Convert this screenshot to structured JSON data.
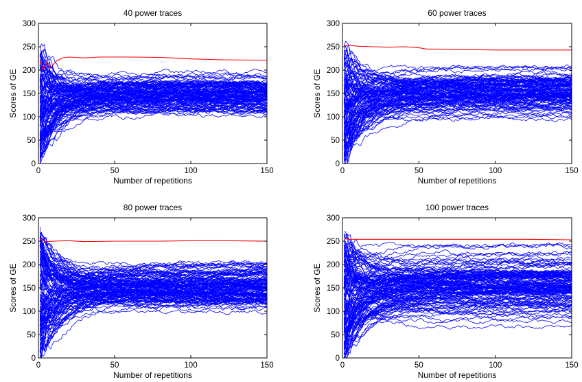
{
  "colors": {
    "candidate": "#0000ff",
    "correct": "#ff0000",
    "axes": "#000000"
  },
  "chart_data": [
    {
      "type": "line",
      "title": "40 power traces",
      "xlabel": "Number of repetitions",
      "ylabel": "Scores of GE",
      "xlim": [
        0,
        150
      ],
      "ylim": [
        0,
        300
      ],
      "xticks": [
        0,
        50,
        100,
        150
      ],
      "yticks": [
        0,
        50,
        100,
        150,
        200,
        250,
        300
      ],
      "series": [
        {
          "color": "#ff0000",
          "x": [
            1,
            3,
            5,
            8,
            12,
            16,
            20,
            30,
            40,
            60,
            80,
            100,
            120,
            150
          ],
          "y": [
            220,
            200,
            215,
            205,
            220,
            226,
            228,
            226,
            228,
            228,
            227,
            224,
            222,
            221
          ]
        },
        {
          "color": "#0000ff",
          "bundle": true,
          "count": 120,
          "x_range": [
            1,
            150
          ],
          "start_range": [
            0,
            258
          ],
          "settled_range": [
            100,
            200
          ],
          "settle_reps": 25
        }
      ]
    },
    {
      "type": "line",
      "title": "60 power traces",
      "xlabel": "Number of repetitions",
      "ylabel": "Scores of GE",
      "xlim": [
        0,
        150
      ],
      "ylim": [
        0,
        300
      ],
      "xticks": [
        0,
        50,
        100,
        150
      ],
      "yticks": [
        0,
        50,
        100,
        150,
        200,
        250,
        300
      ],
      "series": [
        {
          "color": "#ff0000",
          "x": [
            1,
            5,
            10,
            20,
            30,
            40,
            50,
            55,
            60,
            80,
            100,
            120,
            150
          ],
          "y": [
            252,
            253,
            251,
            250,
            249,
            250,
            248,
            245,
            245,
            244,
            243,
            243,
            243
          ]
        },
        {
          "color": "#0000ff",
          "bundle": true,
          "count": 120,
          "x_range": [
            1,
            150
          ],
          "start_range": [
            0,
            258
          ],
          "settled_range": [
            95,
            212
          ],
          "settle_reps": 30
        }
      ]
    },
    {
      "type": "line",
      "title": "80 power traces",
      "xlabel": "Number of repetitions",
      "ylabel": "Scores of GE",
      "xlim": [
        0,
        150
      ],
      "ylim": [
        0,
        300
      ],
      "xticks": [
        0,
        50,
        100,
        150
      ],
      "yticks": [
        0,
        50,
        100,
        150,
        200,
        250,
        300
      ],
      "series": [
        {
          "color": "#ff0000",
          "x": [
            1,
            5,
            10,
            20,
            30,
            50,
            80,
            100,
            120,
            150
          ],
          "y": [
            255,
            249,
            250,
            251,
            249,
            250,
            250,
            251,
            251,
            250
          ]
        },
        {
          "color": "#0000ff",
          "bundle": true,
          "count": 130,
          "x_range": [
            1,
            150
          ],
          "start_range": [
            2,
            258
          ],
          "settled_range": [
            95,
            212
          ],
          "settle_reps": 35
        }
      ]
    },
    {
      "type": "line",
      "title": "100 power traces",
      "xlabel": "Number of repetitions",
      "ylabel": "Scores of GE",
      "xlim": [
        0,
        150
      ],
      "ylim": [
        0,
        300
      ],
      "xticks": [
        0,
        50,
        100,
        150
      ],
      "yticks": [
        0,
        50,
        100,
        150,
        200,
        250,
        300
      ],
      "series": [
        {
          "color": "#ff0000",
          "x": [
            1,
            5,
            10,
            20,
            40,
            60,
            80,
            100,
            120,
            150
          ],
          "y": [
            255,
            254,
            254,
            254,
            254,
            254,
            254,
            254,
            254,
            253
          ]
        },
        {
          "color": "#0000ff",
          "bundle": true,
          "count": 140,
          "x_range": [
            1,
            150
          ],
          "start_range": [
            2,
            258
          ],
          "settled_range": [
            65,
            240
          ],
          "settle_reps": 40
        }
      ]
    }
  ]
}
